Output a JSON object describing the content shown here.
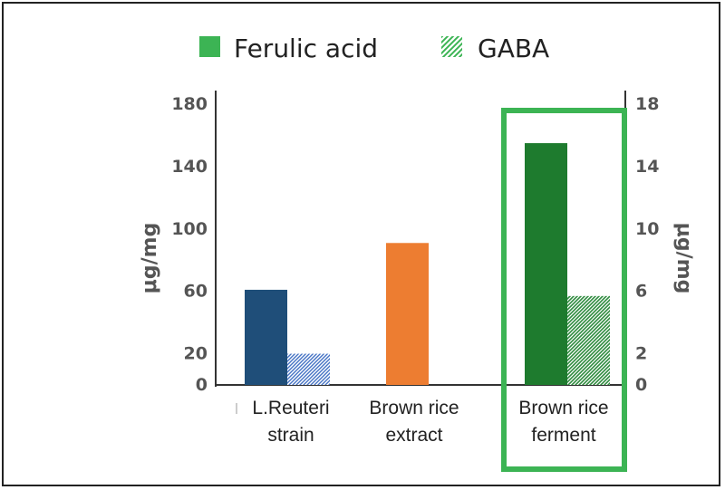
{
  "chart_data": {
    "type": "bar",
    "categories": [
      [
        "L.Reuteri",
        "strain"
      ],
      [
        "Brown rice",
        "extract"
      ],
      [
        "Brown rice",
        "ferment"
      ]
    ],
    "series": [
      {
        "name": "Ferulic acid",
        "axis": "left",
        "values": [
          61,
          91,
          155
        ],
        "colors": [
          "#1f4e79",
          "#ed7d31",
          "#1e7b2e"
        ]
      },
      {
        "name": "GABA",
        "axis": "right",
        "values": [
          2,
          null,
          5.7
        ],
        "colors": [
          "#4472c4",
          null,
          "#2e8b3e"
        ],
        "pattern": "hatched"
      }
    ],
    "yaxis_left": {
      "label": "μg/mg",
      "ticks": [
        0,
        20,
        60,
        100,
        140,
        180
      ],
      "ylim": [
        0,
        180
      ]
    },
    "yaxis_right": {
      "label": "μg/mg",
      "ticks": [
        0,
        2,
        6,
        10,
        14,
        18
      ],
      "ylim": [
        0,
        18
      ]
    },
    "legend": {
      "placement": "top"
    },
    "highlight": {
      "category_index": 2,
      "color": "#3cb454"
    },
    "grid": false,
    "legend_swatch_color": "#3cb454"
  }
}
